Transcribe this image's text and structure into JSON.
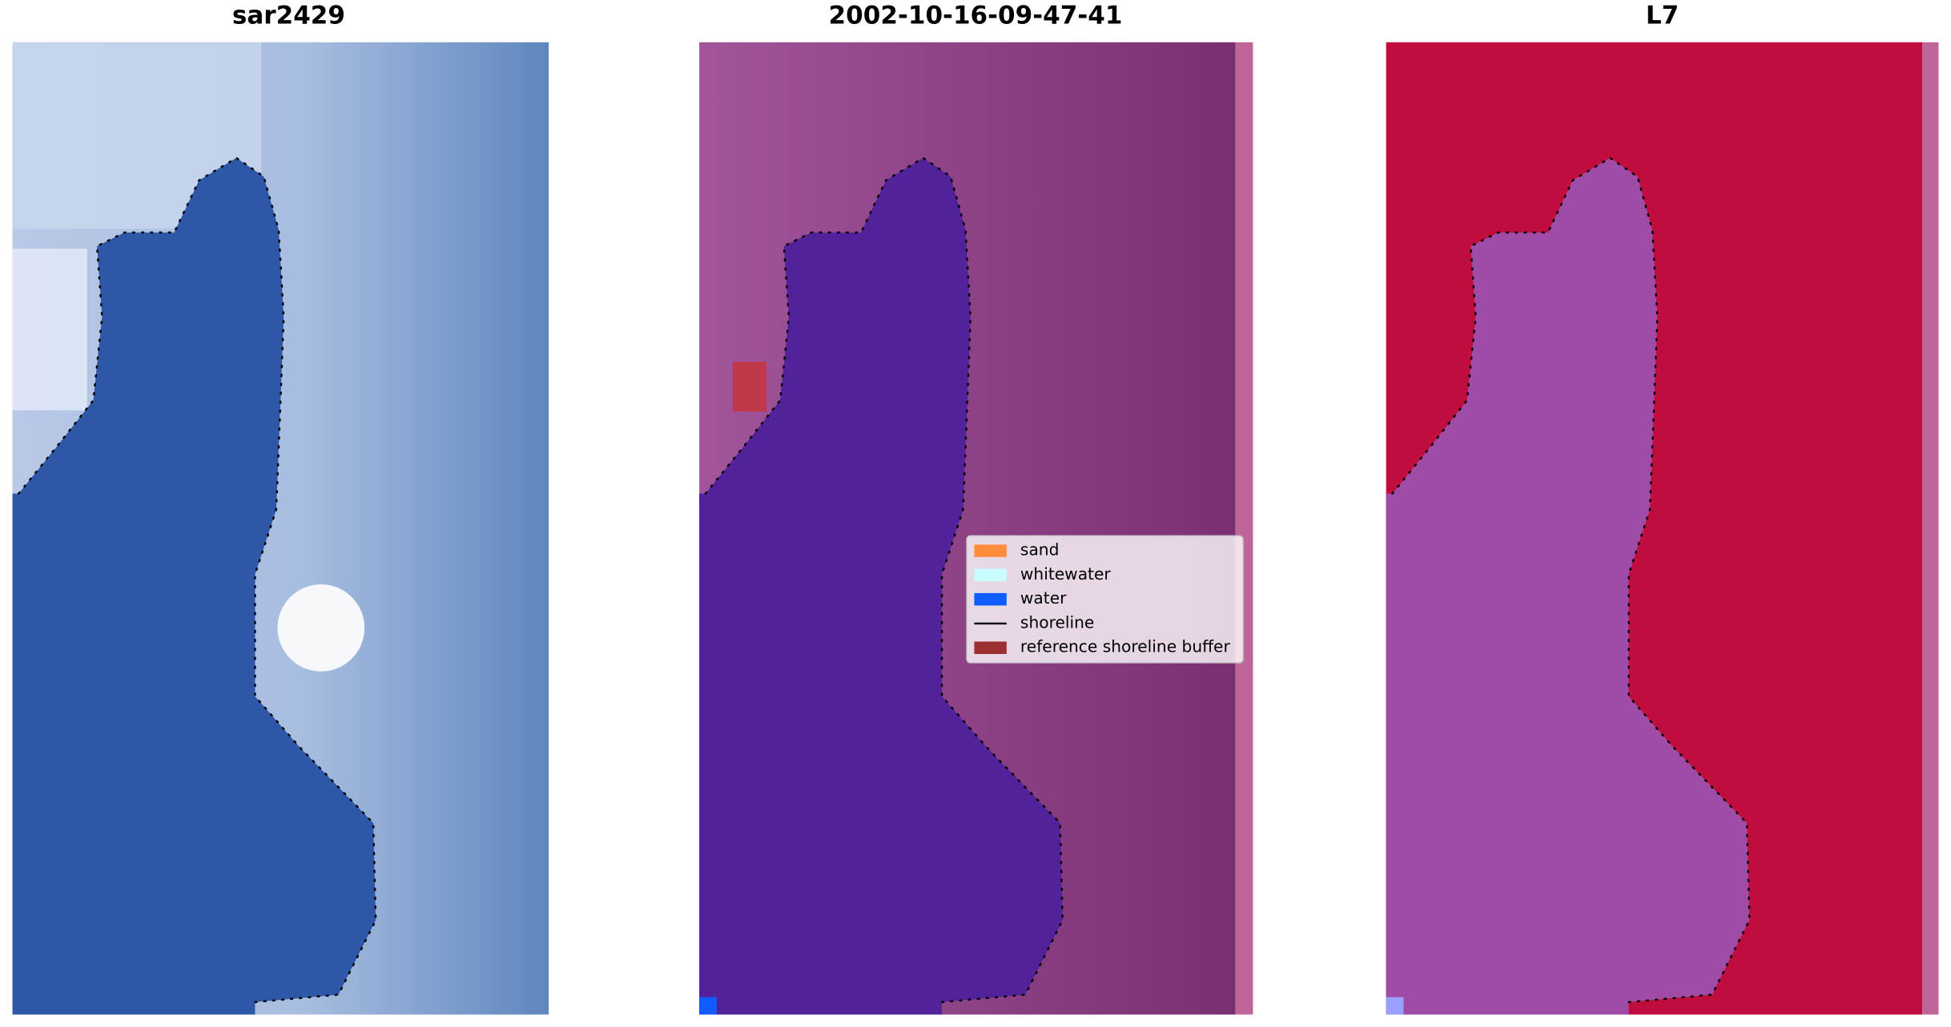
{
  "panels": [
    {
      "title": "sar2429"
    },
    {
      "title": "2002-10-16-09-47-41"
    },
    {
      "title": "L7"
    }
  ],
  "legend": {
    "items": [
      {
        "label": "sand",
        "color": "#ff8c3c"
      },
      {
        "label": "whitewater",
        "color": "#c8fcff"
      },
      {
        "label": "water",
        "color": "#0f5cff"
      },
      {
        "label": "shoreline",
        "color": "#000000"
      },
      {
        "label": "reference shoreline buffer",
        "color": "#9b3030"
      }
    ]
  }
}
